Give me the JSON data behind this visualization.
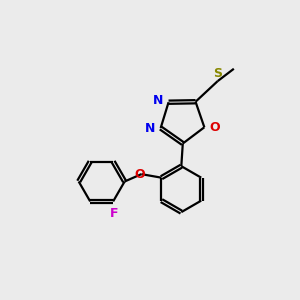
{
  "background_color": "#ebebeb",
  "bond_color": "#000000",
  "nitrogen_color": "#0000ee",
  "oxygen_color": "#dd0000",
  "sulfur_color": "#888800",
  "fluorine_color": "#cc00cc",
  "line_width": 1.6,
  "dbo": 0.055,
  "figsize": [
    3.0,
    3.0
  ],
  "dpi": 100,
  "xlim": [
    0,
    10
  ],
  "ylim": [
    0,
    10
  ]
}
